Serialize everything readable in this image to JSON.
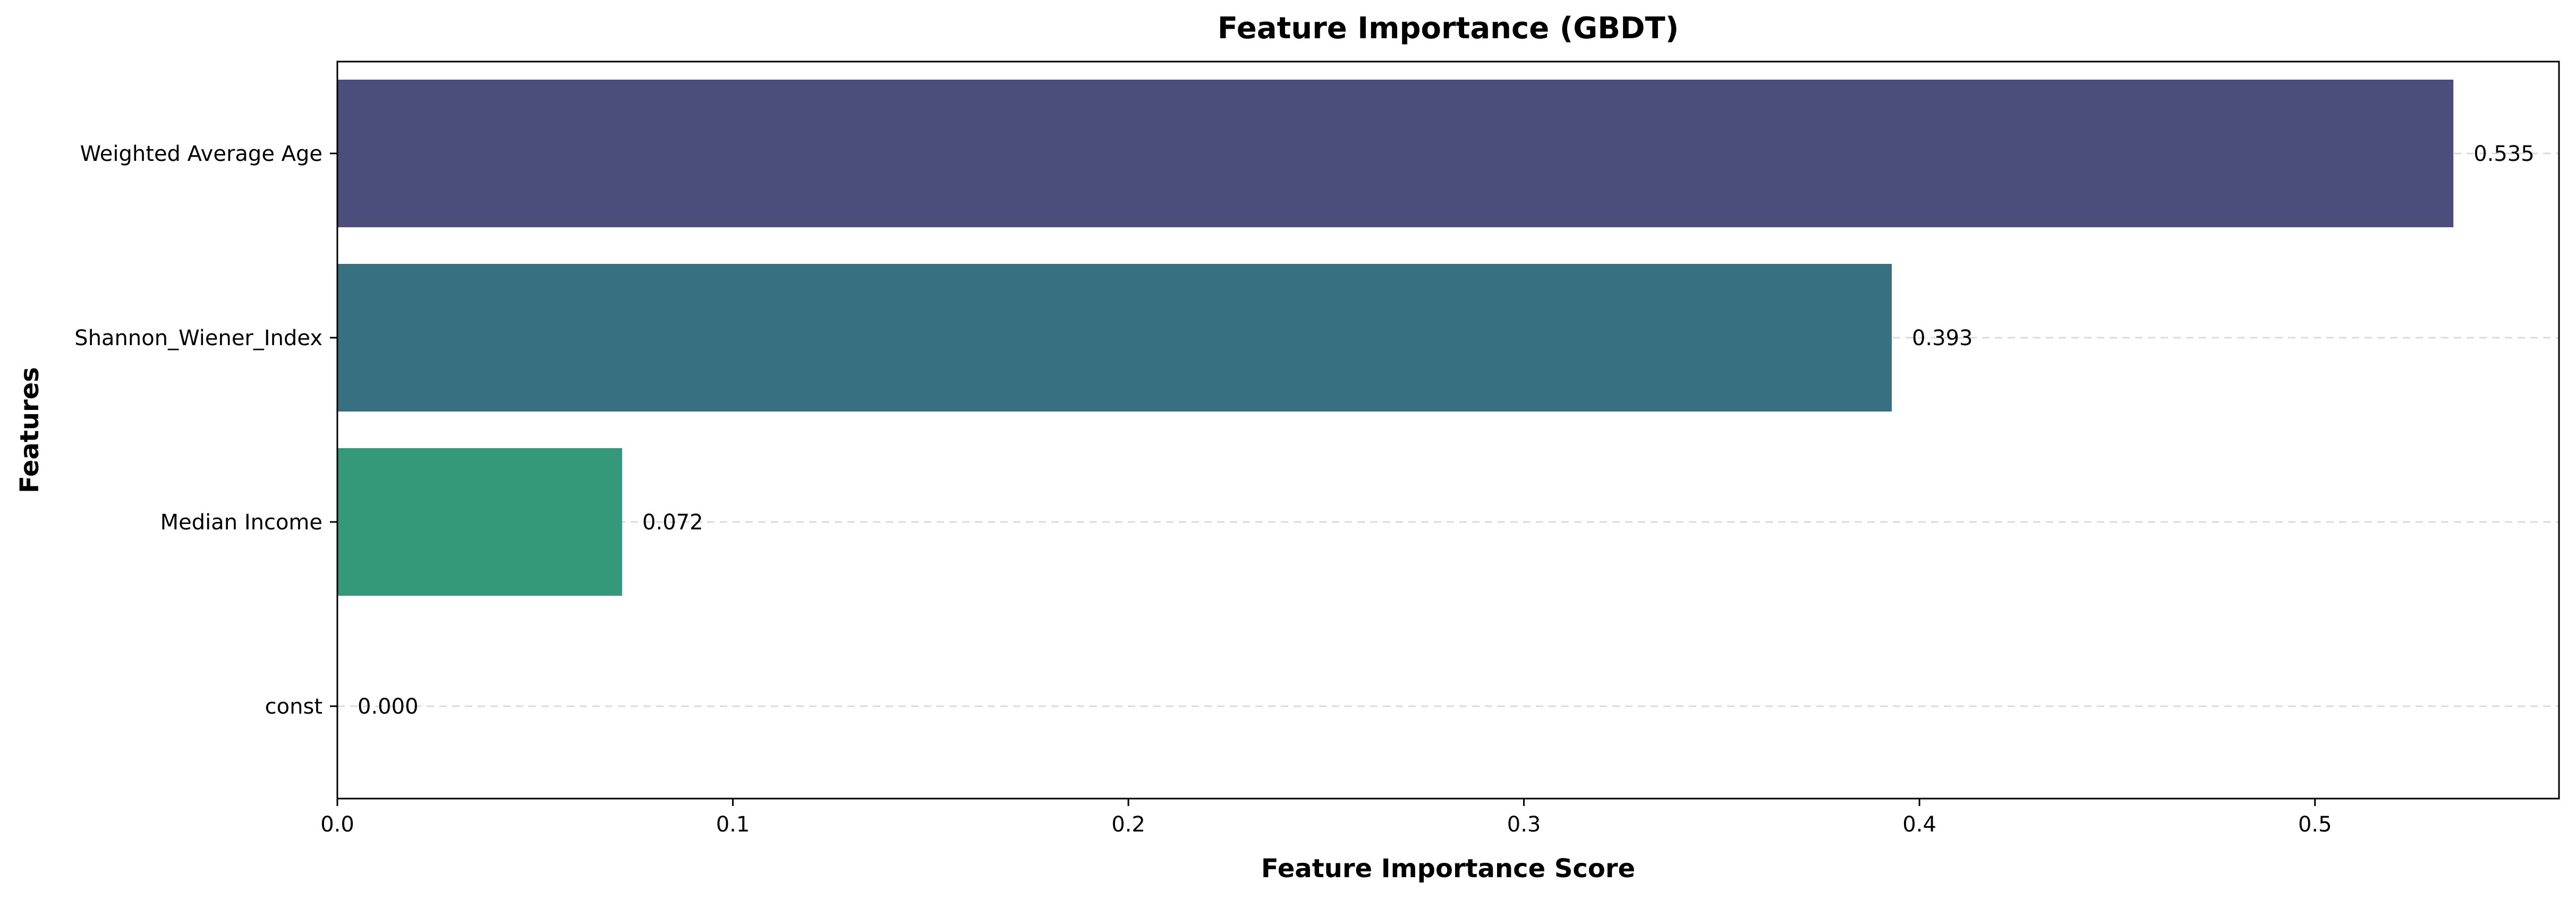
{
  "chart_data": {
    "type": "bar",
    "orientation": "horizontal",
    "title": "Feature Importance (GBDT)",
    "xlabel": "Feature Importance Score",
    "ylabel": "Features",
    "categories": [
      "Weighted Average Age",
      "Shannon_Wiener_Index",
      "Median Income",
      "const"
    ],
    "values": [
      0.535,
      0.393,
      0.072,
      0.0
    ],
    "value_labels": [
      "0.535",
      "0.393",
      "0.072",
      "0.000"
    ],
    "colors": [
      "#4b4d7d",
      "#377181",
      "#34997b",
      "#52c569"
    ],
    "xlim": [
      0,
      0.5617
    ],
    "xticks": [
      0.0,
      0.1,
      0.2,
      0.3,
      0.4,
      0.5
    ],
    "xtick_labels": [
      "0.0",
      "0.1",
      "0.2",
      "0.3",
      "0.4",
      "0.5"
    ],
    "grid": "horizontal dashed",
    "legend": "none"
  }
}
